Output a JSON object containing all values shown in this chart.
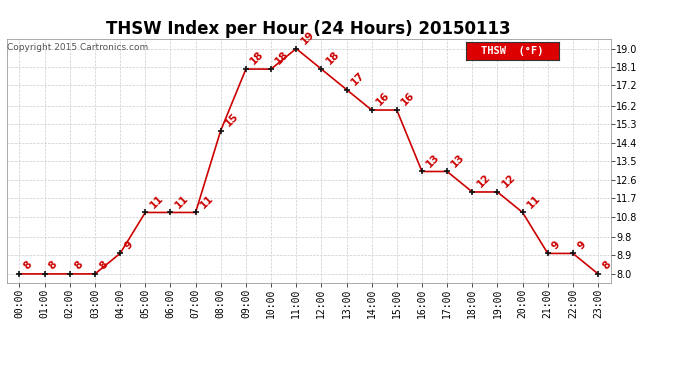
{
  "title": "THSW Index per Hour (24 Hours) 20150113",
  "copyright": "Copyright 2015 Cartronics.com",
  "legend_label": "THSW  (°F)",
  "hours": [
    0,
    1,
    2,
    3,
    4,
    5,
    6,
    7,
    8,
    9,
    10,
    11,
    12,
    13,
    14,
    15,
    16,
    17,
    18,
    19,
    20,
    21,
    22,
    23
  ],
  "values": [
    8,
    8,
    8,
    8,
    9,
    11,
    11,
    11,
    15,
    18,
    18,
    19,
    18,
    17,
    16,
    16,
    13,
    13,
    12,
    12,
    11,
    9,
    9,
    8
  ],
  "xlabels": [
    "00:00",
    "01:00",
    "02:00",
    "03:00",
    "04:00",
    "05:00",
    "06:00",
    "07:00",
    "08:00",
    "09:00",
    "10:00",
    "11:00",
    "12:00",
    "13:00",
    "14:00",
    "15:00",
    "16:00",
    "17:00",
    "18:00",
    "19:00",
    "20:00",
    "21:00",
    "22:00",
    "23:00"
  ],
  "ylim": [
    7.55,
    19.45
  ],
  "yticks": [
    8.0,
    8.9,
    9.8,
    10.8,
    11.7,
    12.6,
    13.5,
    14.4,
    15.3,
    16.2,
    17.2,
    18.1,
    19.0
  ],
  "ytick_labels": [
    "8.0",
    "8.9",
    "9.8",
    "10.8",
    "11.7",
    "12.6",
    "13.5",
    "14.4",
    "15.3",
    "16.2",
    "17.2",
    "18.1",
    "19.0"
  ],
  "line_color": "#cc0000",
  "marker_color": "#111111",
  "label_color": "#cc0000",
  "grid_color": "#cccccc",
  "bg_color": "#ffffff",
  "title_fontsize": 12,
  "label_fontsize": 7.5,
  "tick_fontsize": 7,
  "copyright_fontsize": 6.5,
  "legend_bg": "#dd0000",
  "legend_text_color": "#ffffff",
  "legend_fontsize": 7.5
}
